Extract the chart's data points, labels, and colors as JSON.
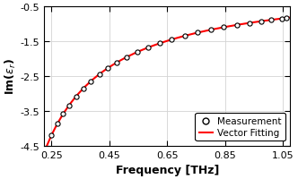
{
  "xlabel": "Frequency [THz]",
  "xlim": [
    0.225,
    1.075
  ],
  "ylim": [
    -4.5,
    -0.5
  ],
  "xticks": [
    0.25,
    0.45,
    0.65,
    0.85,
    1.05
  ],
  "yticks": [
    -4.5,
    -3.5,
    -2.5,
    -1.5,
    -0.5
  ],
  "line_color": "#ff0000",
  "dot_color": "#000000",
  "legend_items": [
    "Measurement",
    "Vector Fitting"
  ],
  "background_color": "#ffffff",
  "grid_color": "#d3d3d3",
  "A": -1.0992,
  "B": 0.197,
  "freq_dots": [
    0.25,
    0.27,
    0.29,
    0.31,
    0.335,
    0.36,
    0.385,
    0.415,
    0.445,
    0.475,
    0.51,
    0.545,
    0.585,
    0.625,
    0.665,
    0.71,
    0.755,
    0.8,
    0.845,
    0.89,
    0.935,
    0.975,
    1.01,
    1.045,
    1.06
  ]
}
